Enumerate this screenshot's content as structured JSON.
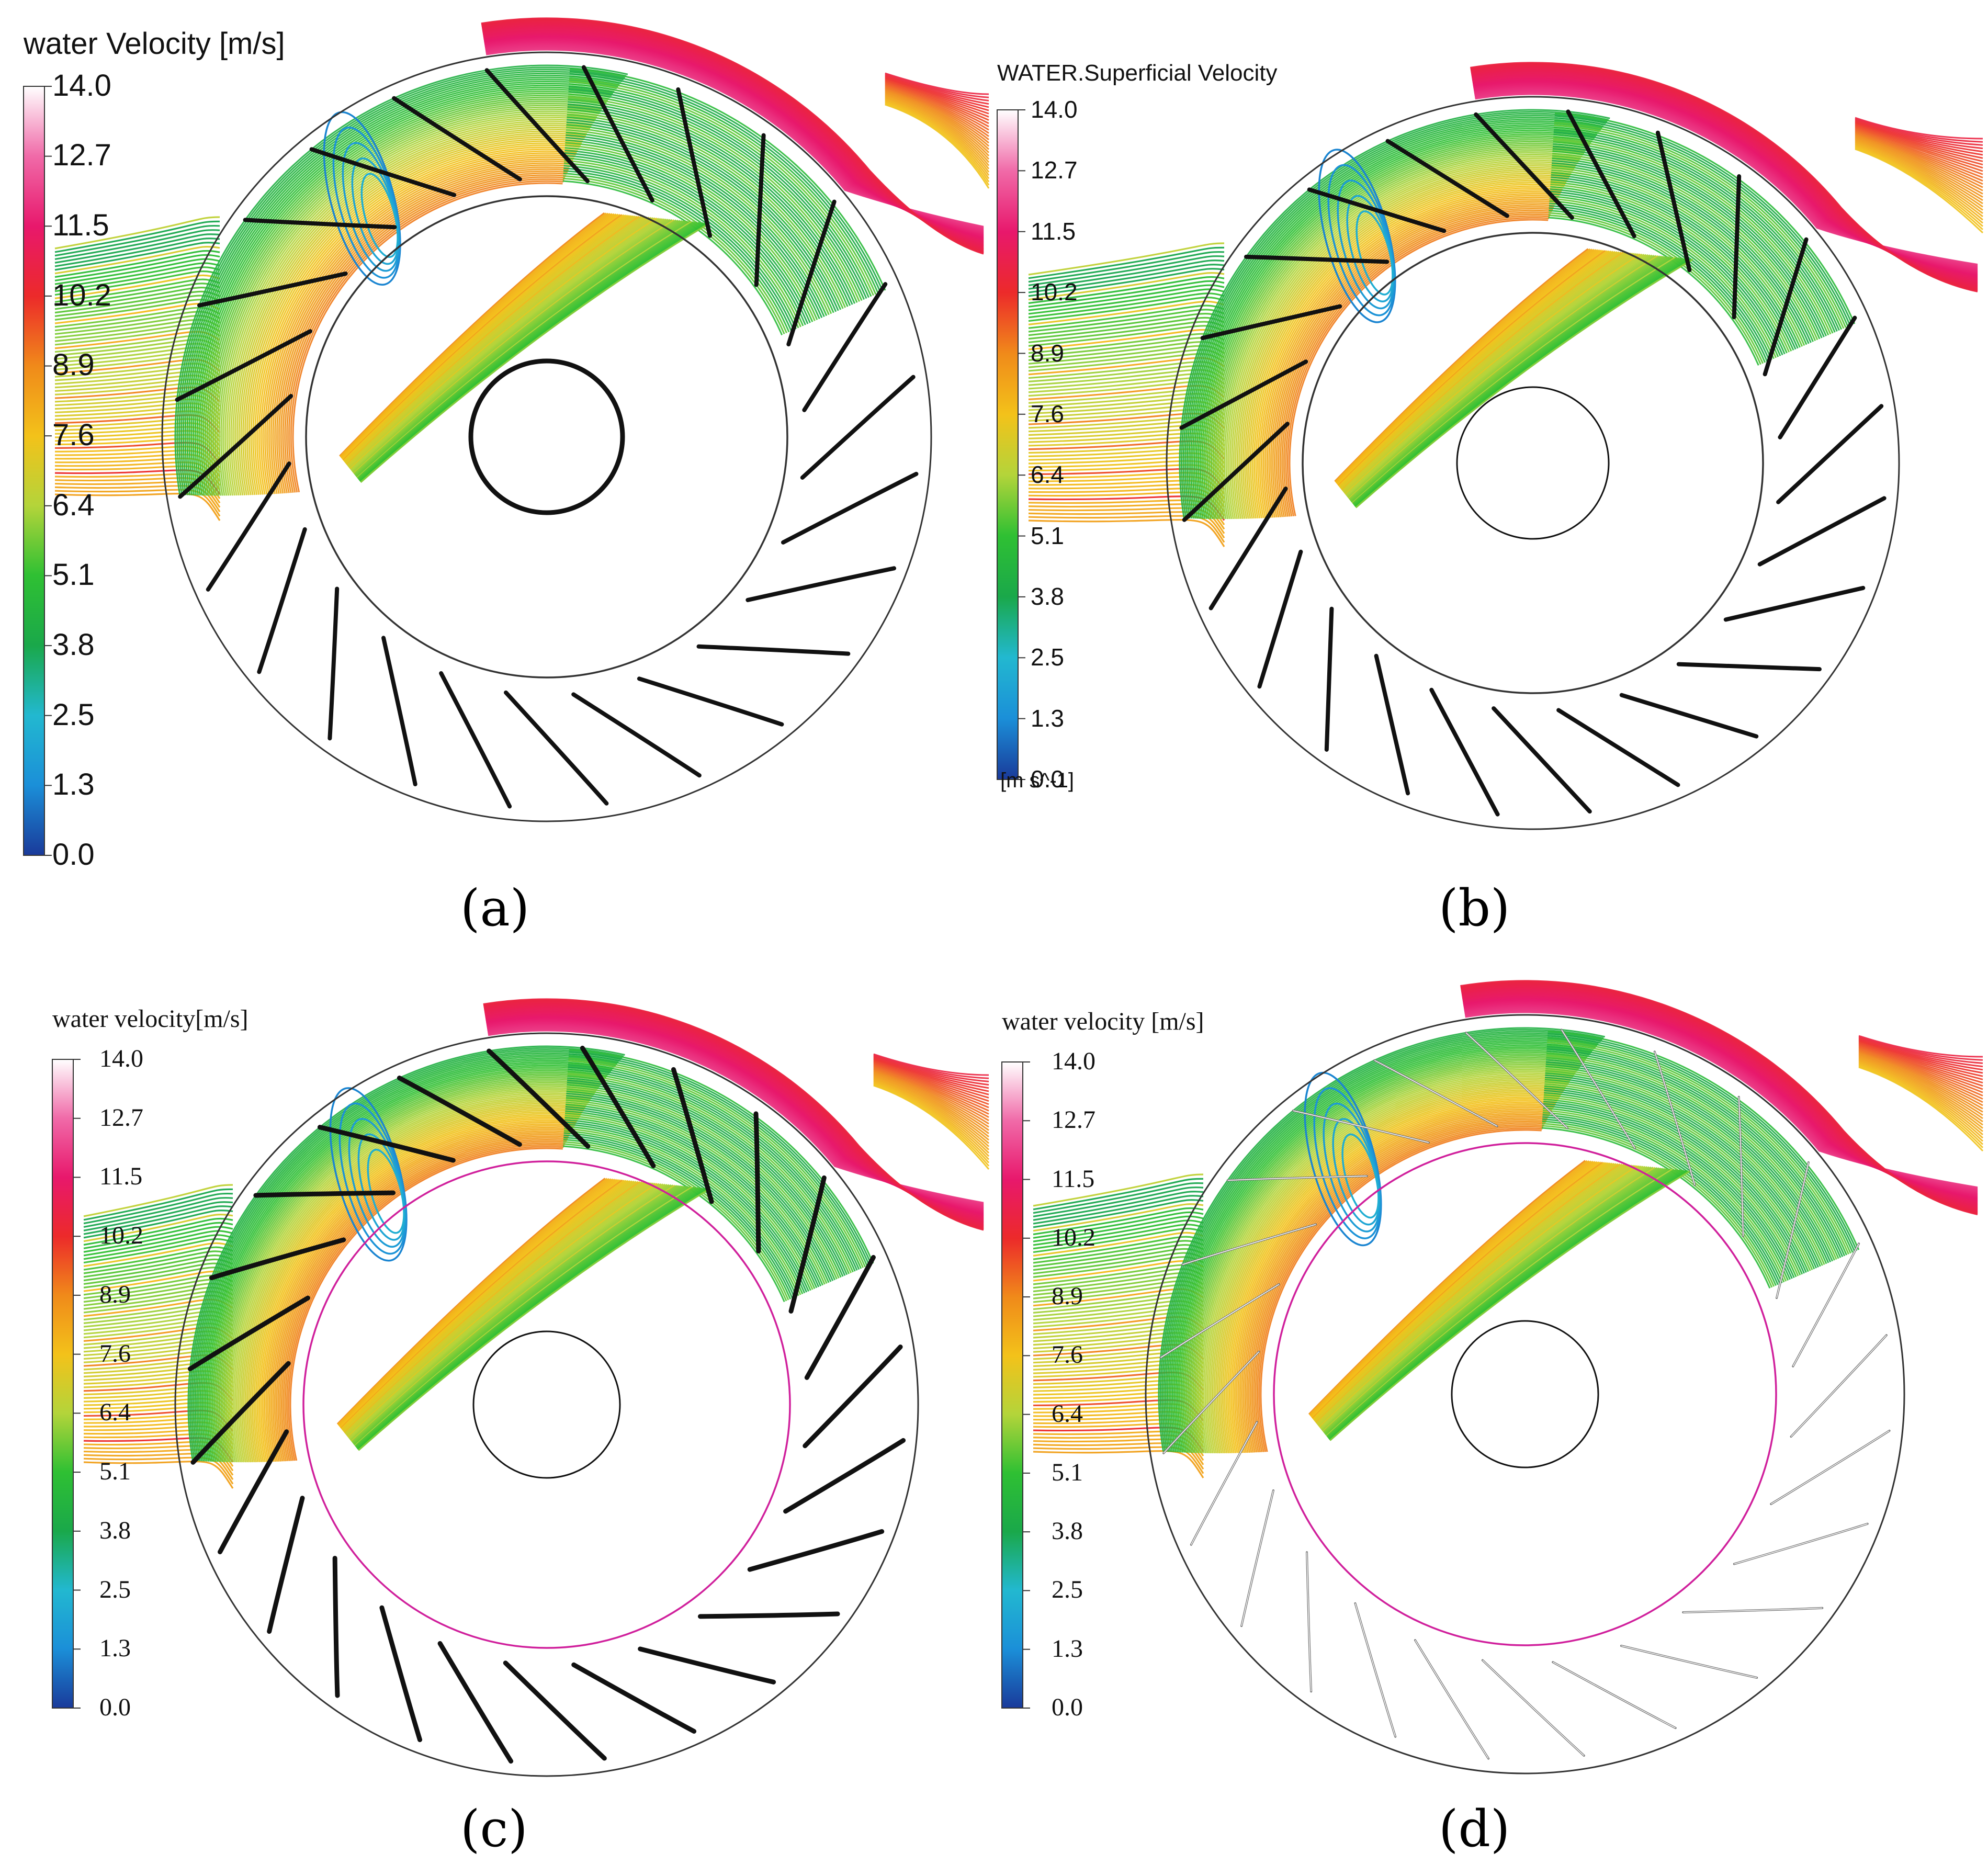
{
  "colors": {
    "scale": [
      "#1a3a9a",
      "#1b8fd8",
      "#22b8d0",
      "#1aa84a",
      "#2fc033",
      "#b4d43a",
      "#f3c21a",
      "#f08a1a",
      "#ec2a2a",
      "#e8186c",
      "#f06aa8",
      "#ffffff"
    ],
    "blade": "#111111",
    "rotor_outline_c_d": "#d0209c"
  },
  "panels": [
    {
      "id": "a",
      "legend_title": "water Velocity  [m/s]",
      "legend_unit": "",
      "ticks": [
        "14.0",
        "12.7",
        "11.5",
        "10.2",
        "8.9",
        "7.6",
        "6.4",
        "5.1",
        "3.8",
        "2.5",
        "1.3",
        "0.0"
      ],
      "caption": "(a)"
    },
    {
      "id": "b",
      "legend_title": "WATER.Superficial Velocity",
      "legend_unit": "[m s^-1]",
      "ticks": [
        "14.0",
        "12.7",
        "11.5",
        "10.2",
        "8.9",
        "7.6",
        "6.4",
        "5.1",
        "3.8",
        "2.5",
        "1.3",
        "0.0"
      ],
      "caption": "(b)"
    },
    {
      "id": "c",
      "legend_title": "water velocity[m/s]",
      "legend_unit": "",
      "ticks": [
        "14.0",
        "12.7",
        "11.5",
        "10.2",
        "8.9",
        "7.6",
        "6.4",
        "5.1",
        "3.8",
        "2.5",
        "1.3",
        "0.0"
      ],
      "caption": "(c)"
    },
    {
      "id": "d",
      "legend_title": "water velocity [m/s]",
      "legend_unit": "",
      "ticks": [
        "14.0",
        "12.7",
        "11.5",
        "10.2",
        "8.9",
        "7.6",
        "6.4",
        "5.1",
        "3.8",
        "2.5",
        "1.3",
        "0.0"
      ],
      "caption": "(d)"
    }
  ]
}
